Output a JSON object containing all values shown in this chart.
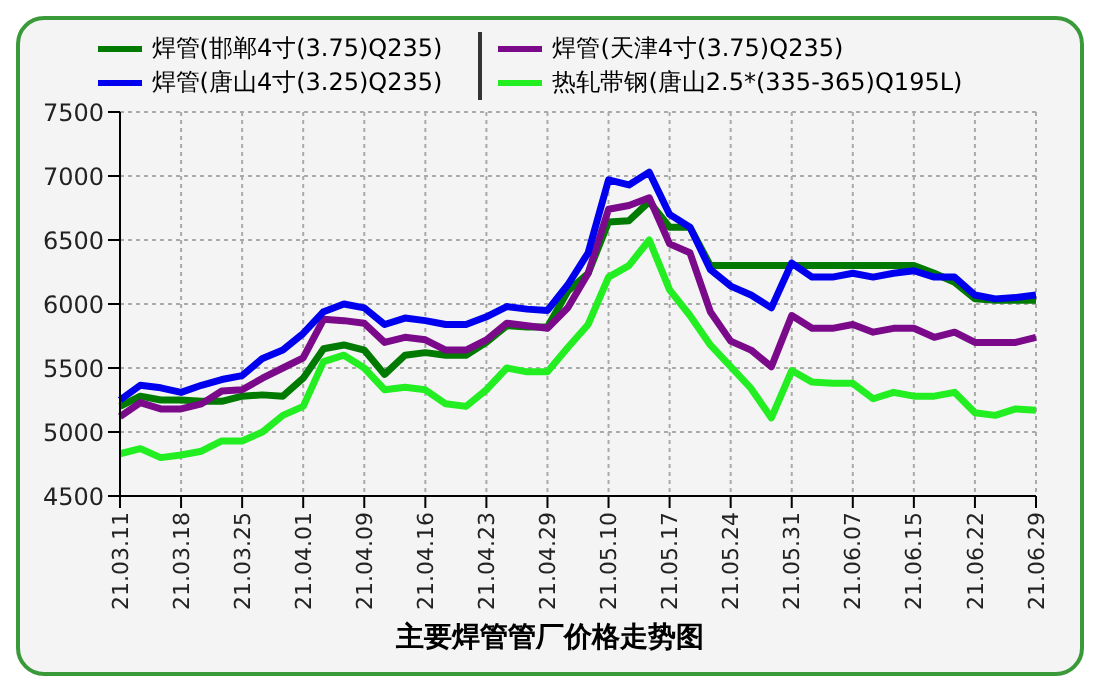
{
  "chart_data": {
    "type": "line",
    "title": "主要焊管管厂价格走势图",
    "categories": [
      "21.03.11",
      null,
      null,
      "21.03.18",
      null,
      null,
      "21.03.25",
      null,
      null,
      "21.04.01",
      null,
      null,
      "21.04.09",
      null,
      null,
      "21.04.16",
      null,
      null,
      "21.04.23",
      null,
      null,
      "21.04.29",
      null,
      null,
      "21.05.10",
      null,
      null,
      "21.05.17",
      null,
      null,
      "21.05.24",
      null,
      null,
      "21.05.31",
      null,
      null,
      "21.06.07",
      null,
      null,
      "21.06.15",
      null,
      null,
      "21.06.22",
      null,
      null,
      "21.06.29"
    ],
    "series": [
      {
        "name": "焊管(邯郸4寸(3.75)Q235)",
        "color": "#007a00",
        "values": [
          5200,
          5280,
          5250,
          5250,
          5240,
          5240,
          5280,
          5290,
          5280,
          5420,
          5650,
          5680,
          5640,
          5450,
          5600,
          5620,
          5600,
          5600,
          5700,
          5830,
          5820,
          5820,
          6100,
          6240,
          6640,
          6650,
          6800,
          6600,
          6600,
          6300,
          6300,
          6300,
          6300,
          6300,
          6300,
          6300,
          6300,
          6300,
          6300,
          6300,
          6240,
          6170,
          6040,
          6030,
          6030,
          6030
        ]
      },
      {
        "name": "焊管(天津4寸(3.75)Q235)",
        "color": "#7a0a8a",
        "values": [
          5120,
          5230,
          5180,
          5180,
          5220,
          5320,
          5330,
          5420,
          5500,
          5580,
          5880,
          5870,
          5850,
          5700,
          5740,
          5720,
          5640,
          5640,
          5720,
          5850,
          5830,
          5810,
          5970,
          6240,
          6740,
          6770,
          6830,
          6470,
          6400,
          5940,
          5710,
          5640,
          5510,
          5910,
          5810,
          5810,
          5840,
          5780,
          5810,
          5810,
          5740,
          5780,
          5700,
          5700,
          5700,
          5740
        ]
      },
      {
        "name": "焊管(唐山4寸(3.25)Q235)",
        "color": "#0000ee",
        "values": [
          5250,
          5365,
          5345,
          5310,
          5365,
          5410,
          5440,
          5575,
          5640,
          5770,
          5940,
          6000,
          5970,
          5840,
          5890,
          5870,
          5840,
          5840,
          5900,
          5980,
          5960,
          5950,
          6150,
          6400,
          6970,
          6930,
          7030,
          6700,
          6600,
          6270,
          6140,
          6070,
          5970,
          6320,
          6210,
          6210,
          6240,
          6210,
          6240,
          6260,
          6210,
          6210,
          6070,
          6040,
          6050,
          6070
        ]
      },
      {
        "name": "热轧带钢(唐山2.5*(335-365)Q195L)",
        "color": "#22ee22",
        "values": [
          4830,
          4870,
          4800,
          4820,
          4850,
          4930,
          4930,
          5000,
          5130,
          5200,
          5550,
          5600,
          5500,
          5330,
          5350,
          5330,
          5220,
          5200,
          5330,
          5500,
          5470,
          5470,
          5660,
          5840,
          6210,
          6300,
          6500,
          6110,
          5910,
          5680,
          5510,
          5340,
          5110,
          5480,
          5390,
          5380,
          5380,
          5260,
          5310,
          5280,
          5280,
          5310,
          5150,
          5130,
          5180,
          5170
        ]
      }
    ],
    "ylim": [
      4500,
      7500
    ],
    "yticks": [
      4500,
      5000,
      5500,
      6000,
      6500,
      7000,
      7500
    ],
    "grid": true,
    "legend": "top",
    "marker": "none",
    "line_style": "solid"
  }
}
